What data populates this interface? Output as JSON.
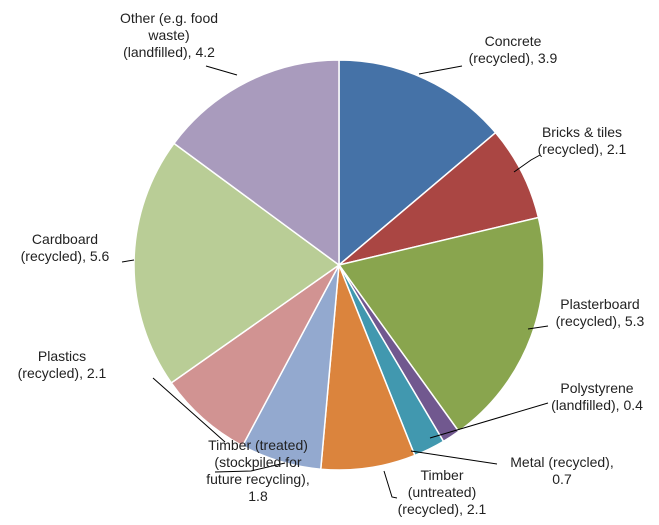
{
  "chart_data": {
    "type": "pie",
    "title": "",
    "legend": "none",
    "slices": [
      {
        "label_lines": [
          "Concrete",
          "(recycled), 3.9"
        ],
        "value": 3.9,
        "color": "#4572A7"
      },
      {
        "label_lines": [
          "Bricks & tiles",
          "(recycled), 2.1"
        ],
        "value": 2.1,
        "color": "#AA4643"
      },
      {
        "label_lines": [
          "Plasterboard",
          "(recycled), 5.3"
        ],
        "value": 5.3,
        "color": "#89A54E"
      },
      {
        "label_lines": [
          "Polystyrene",
          "(landfilled), 0.4"
        ],
        "value": 0.4,
        "color": "#71588F"
      },
      {
        "label_lines": [
          "Metal (recycled),",
          "0.7"
        ],
        "value": 0.7,
        "color": "#4198AF"
      },
      {
        "label_lines": [
          "Timber",
          "(untreated)",
          "(recycled), 2.1"
        ],
        "value": 2.1,
        "color": "#DB843D"
      },
      {
        "label_lines": [
          "Timber (treated)",
          "(stockpiled for",
          "future recycling),",
          "1.8"
        ],
        "value": 1.8,
        "color": "#93A9CF"
      },
      {
        "label_lines": [
          "Plastics",
          "(recycled), 2.1"
        ],
        "value": 2.1,
        "color": "#D19392"
      },
      {
        "label_lines": [
          "Cardboard",
          "(recycled), 5.6"
        ],
        "value": 5.6,
        "color": "#B9CD96"
      },
      {
        "label_lines": [
          "Other (e.g. food",
          "waste)",
          "(landfilled), 4.2"
        ],
        "value": 4.2,
        "color": "#A99BBD"
      }
    ]
  }
}
